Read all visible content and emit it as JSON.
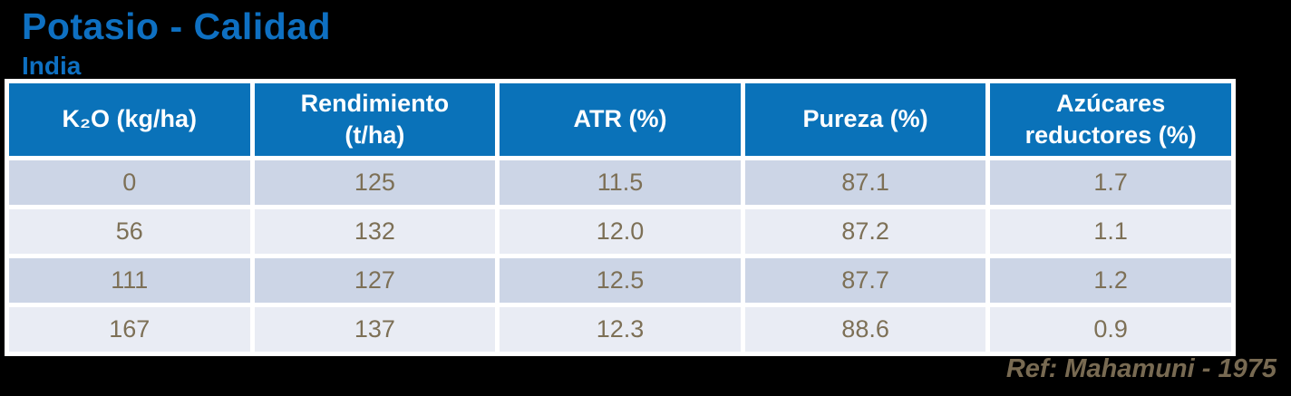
{
  "page": {
    "title": "Potasio - Calidad",
    "subtitle": "India",
    "reference": "Ref: Mahamuni - 1975"
  },
  "colors": {
    "background": "#000000",
    "title_blue": "#0e70c2",
    "header_fill": "#0a72b9",
    "header_text": "#ffffff",
    "row_odd_fill": "#ccd5e6",
    "row_even_fill": "#e9ecf4",
    "cell_text": "#7d7056",
    "reference_text": "#786a52",
    "table_border": "#ffffff"
  },
  "chart_data": {
    "type": "table",
    "title": "Potasio - Calidad",
    "subtitle": "India",
    "columns": [
      "K₂O (kg/ha)",
      "Rendimiento (t/ha)",
      "ATR (%)",
      "Pureza (%)",
      "Azúcares reductores (%)"
    ],
    "rows": [
      [
        "0",
        "125",
        "11.5",
        "87.1",
        "1.7"
      ],
      [
        "56",
        "132",
        "12.0",
        "87.2",
        "1.1"
      ],
      [
        "111",
        "127",
        "12.5",
        "87.7",
        "1.2"
      ],
      [
        "167",
        "137",
        "12.3",
        "88.6",
        "0.9"
      ]
    ],
    "reference": "Ref: Mahamuni - 1975",
    "layout": {
      "equal_column_widths": true,
      "alternating_row_shading": true,
      "header_position": "top"
    }
  }
}
